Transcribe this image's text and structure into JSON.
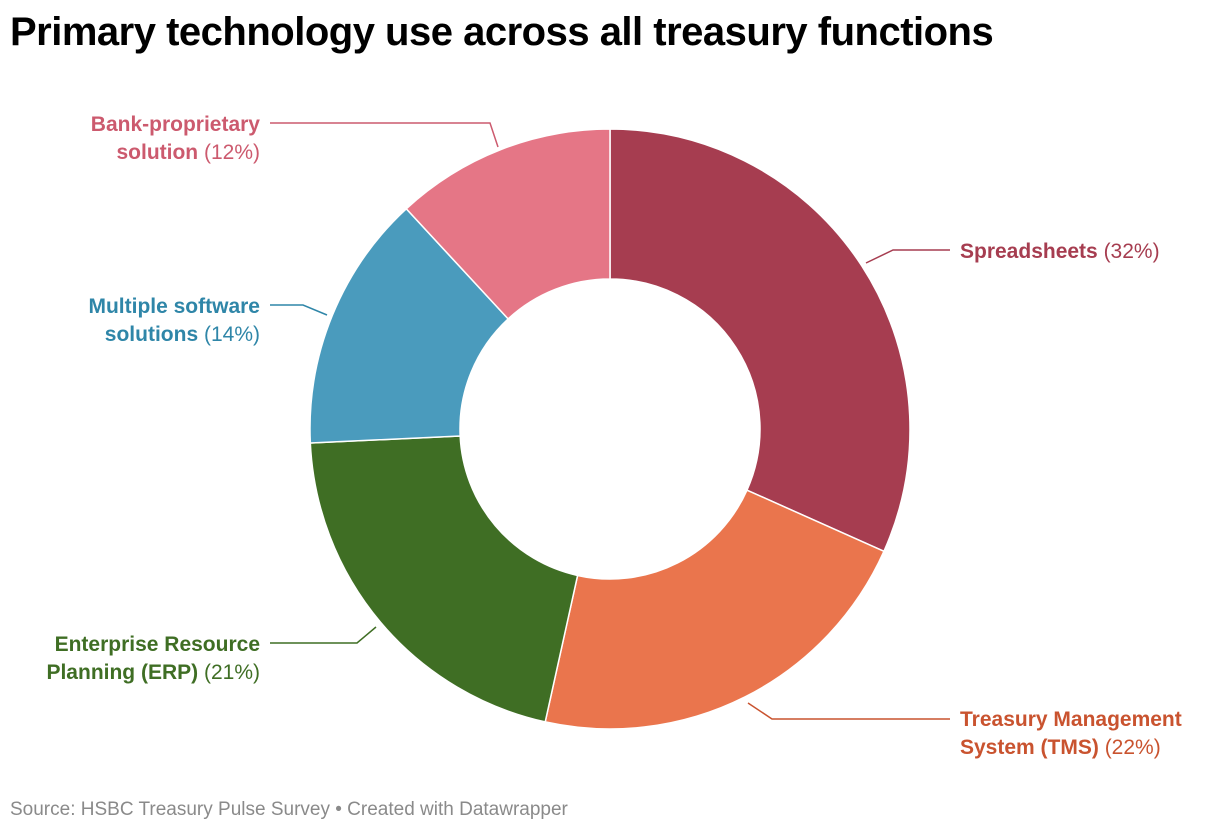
{
  "chart_data": {
    "type": "pie",
    "title": "Primary technology use across all treasury functions",
    "unit": "%",
    "slices": [
      {
        "label": "Spreadsheets",
        "value": 32,
        "color": "#a63d50",
        "text_color": "#a63d50"
      },
      {
        "label": "Treasury Management System (TMS)",
        "value": 22,
        "color": "#ea754d",
        "text_color": "#c9532f"
      },
      {
        "label": "Enterprise Resource Planning (ERP)",
        "value": 21,
        "color": "#3f6e24",
        "text_color": "#3f6e24"
      },
      {
        "label": "Multiple software solutions",
        "value": 14,
        "color": "#4a9bbd",
        "text_color": "#2f86a8"
      },
      {
        "label": "Bank-proprietary solution",
        "value": 12,
        "color": "#e57686",
        "text_color": "#cc5a6e"
      }
    ],
    "label_lines": [
      [
        "Spreadsheets"
      ],
      [
        "Treasury Management",
        "System (TMS)"
      ],
      [
        "Enterprise Resource",
        "Planning (ERP)"
      ],
      [
        "Multiple software",
        "solutions"
      ],
      [
        "Bank-proprietary",
        "solution"
      ]
    ],
    "percent_labels": [
      "(32%)",
      "(22%)",
      "(21%)",
      "(14%)",
      "(12%)"
    ],
    "legend": "none",
    "donut": true
  },
  "source_note": "Source: HSBC Treasury Pulse Survey • Created with Datawrapper"
}
